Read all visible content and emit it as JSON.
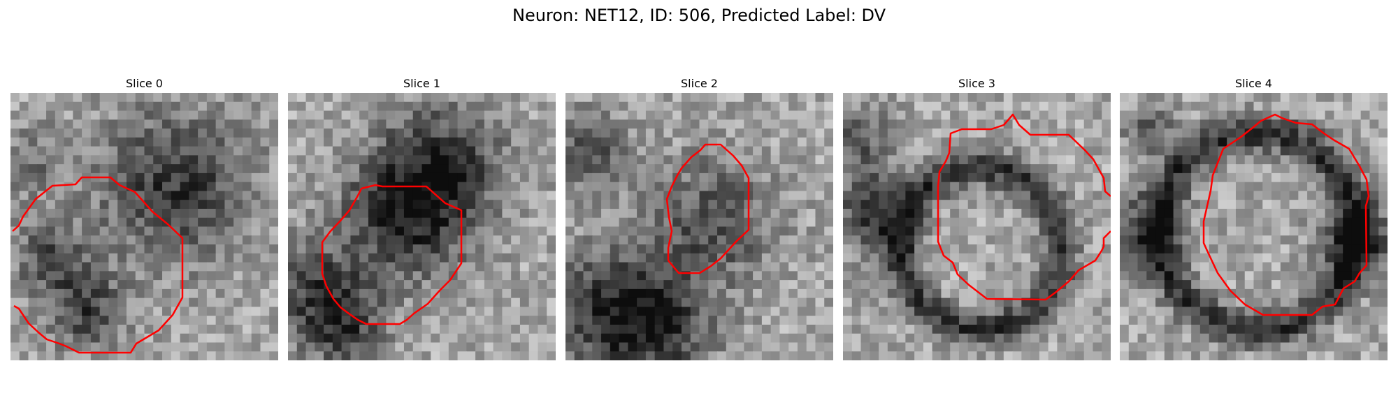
{
  "figure": {
    "title": "Neuron: NET12, ID: 506, Predicted Label: DV"
  },
  "colormap": "gray",
  "contour_color": "#ff0000",
  "slices": [
    {
      "title": "Slice 0"
    },
    {
      "title": "Slice 1"
    },
    {
      "title": "Slice 2"
    },
    {
      "title": "Slice 3"
    },
    {
      "title": "Slice 4"
    }
  ]
}
